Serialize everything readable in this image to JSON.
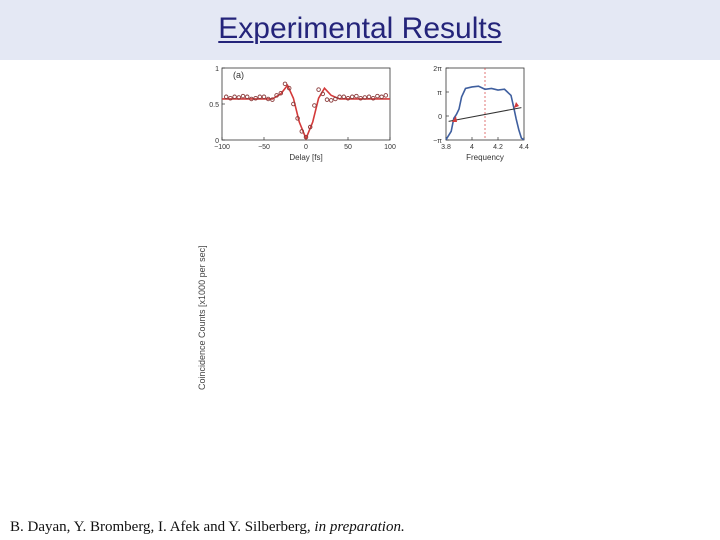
{
  "slide": {
    "title": "Experimental Results",
    "citation_authors": "B. Dayan, Y. Bromberg, I. Afek and Y. Silberberg,",
    "citation_status": "in preparation."
  },
  "chart_data": [
    {
      "type": "scatter",
      "panel_label": "(a)",
      "xlabel": "Delay [fs]",
      "ylabel": "",
      "xlim": [
        -100,
        100
      ],
      "ylim": [
        0,
        1
      ],
      "x_ticks": [
        "−100",
        "−50",
        "0",
        "50",
        "100"
      ],
      "y_ticks": [
        "0",
        "0.5",
        "1"
      ],
      "series": [
        {
          "x": [
            -95,
            -90,
            -85,
            -80,
            -75,
            -70,
            -65,
            -60,
            -55,
            -50,
            -45,
            -40,
            -35,
            -30,
            -25,
            -20,
            -15,
            -10,
            -5,
            0,
            5,
            10,
            15,
            20,
            25,
            30,
            35,
            40,
            45,
            50,
            55,
            60,
            65,
            70,
            75,
            80,
            85,
            90,
            95
          ],
          "y": [
            0.6,
            0.58,
            0.6,
            0.59,
            0.61,
            0.6,
            0.57,
            0.58,
            0.6,
            0.6,
            0.57,
            0.56,
            0.62,
            0.65,
            0.78,
            0.72,
            0.5,
            0.3,
            0.12,
            0.04,
            0.18,
            0.48,
            0.7,
            0.64,
            0.56,
            0.55,
            0.57,
            0.6,
            0.6,
            0.58,
            0.6,
            0.61,
            0.58,
            0.59,
            0.6,
            0.58,
            0.61,
            0.6,
            0.62
          ]
        },
        {
          "x": [
            -100,
            -40,
            -30,
            -22,
            -15,
            -8,
            0,
            8,
            15,
            22,
            30,
            40,
            100
          ],
          "y": [
            0.57,
            0.57,
            0.64,
            0.76,
            0.58,
            0.25,
            0.02,
            0.25,
            0.58,
            0.72,
            0.62,
            0.57,
            0.57
          ]
        }
      ],
      "colors": {
        "points": "#8a3a3a",
        "fit": "#d43a3a"
      }
    },
    {
      "type": "line",
      "xlabel": "Frequency",
      "ylabel": "",
      "xlim": [
        3.8,
        4.4
      ],
      "ylim": [
        -3.1416,
        6.2832
      ],
      "x_ticks": [
        "3.8",
        "4",
        "4.2",
        "4.4"
      ],
      "y_ticks": [
        "−π",
        "0",
        "π",
        "2π"
      ],
      "series": [
        {
          "x": [
            3.8,
            3.84,
            3.86,
            3.88,
            3.9,
            3.92,
            3.95,
            4.0,
            4.05,
            4.1,
            4.15,
            4.2,
            4.25,
            4.3,
            4.32,
            4.34,
            4.36,
            4.38,
            4.4
          ],
          "y": [
            -3.1,
            -2.0,
            -0.3,
            0.2,
            0.9,
            2.5,
            3.6,
            3.8,
            3.9,
            3.5,
            3.6,
            3.4,
            3.5,
            2.7,
            1.2,
            -0.4,
            -1.8,
            -2.9,
            -3.1
          ]
        },
        {
          "x": [
            3.82,
            4.38
          ],
          "y": [
            -0.7,
            1.1
          ]
        }
      ],
      "colors": {
        "phase": "#3f5f9f",
        "line": "#333333",
        "markers": "#d43a3a"
      }
    }
  ],
  "unplaced_axis_label": "Coincidence Counts [x1000 per sec]"
}
